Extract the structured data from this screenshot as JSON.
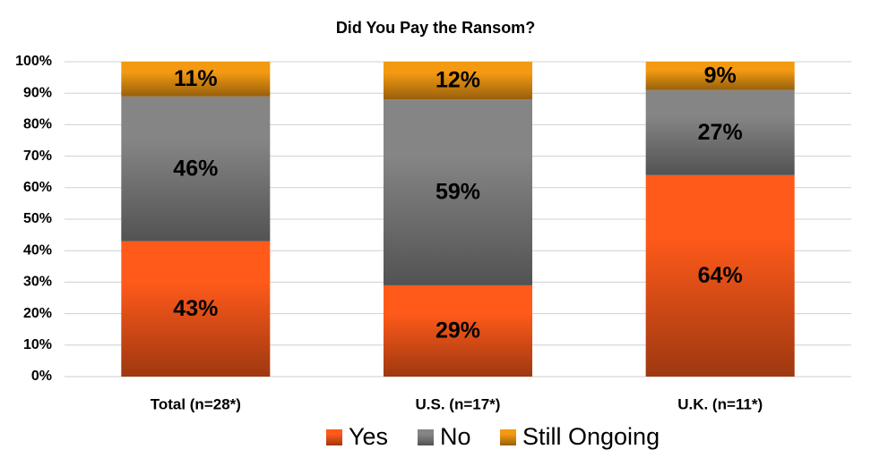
{
  "chart_data": {
    "type": "stacked-bar",
    "title": "Did You Pay the Ransom?",
    "categories": [
      "Total (n=28*)",
      "U.S. (n=17*)",
      "U.K. (n=11*)"
    ],
    "series": [
      {
        "name": "Yes",
        "color": "#ff5a1a",
        "values": [
          43,
          29,
          64
        ],
        "value_labels": [
          "43%",
          "29%",
          "64%"
        ]
      },
      {
        "name": "No",
        "color": "#858585",
        "values": [
          46,
          59,
          27
        ],
        "value_labels": [
          "46%",
          "59%",
          "27%"
        ]
      },
      {
        "name": "Still Ongoing",
        "color": "#f39a12",
        "values": [
          11,
          12,
          9
        ],
        "value_labels": [
          "11%",
          "12%",
          "9%"
        ]
      }
    ],
    "ylim": [
      0,
      100
    ],
    "yticks": [
      {
        "value": 0,
        "label": "0%"
      },
      {
        "value": 10,
        "label": "10%"
      },
      {
        "value": 20,
        "label": "20%"
      },
      {
        "value": 30,
        "label": "30%"
      },
      {
        "value": 40,
        "label": "40%"
      },
      {
        "value": 50,
        "label": "50%"
      },
      {
        "value": 60,
        "label": "60%"
      },
      {
        "value": 70,
        "label": "70%"
      },
      {
        "value": 80,
        "label": "80%"
      },
      {
        "value": 90,
        "label": "90%"
      },
      {
        "value": 100,
        "label": "100%"
      }
    ],
    "grid": true
  }
}
